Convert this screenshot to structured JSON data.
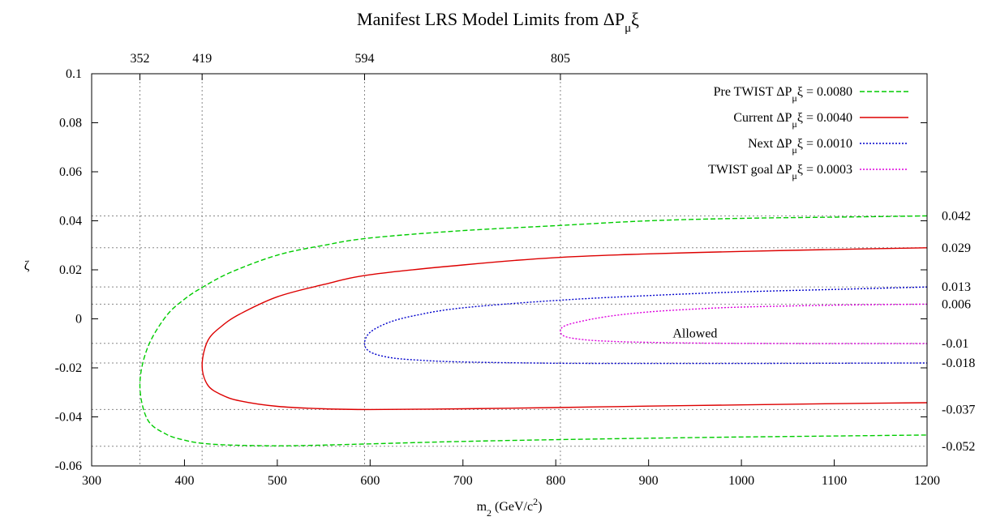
{
  "chart_data": {
    "type": "line",
    "title": "Manifest LRS Model Limits from ΔP",
    "title_sub": "μ",
    "title_tail": "ξ",
    "xlabel": "m",
    "xlabel_sub": "2",
    "xlabel_tail": " (GeV/c",
    "xlabel_sup": "2",
    "xlabel_end": ")",
    "ylabel": "ζ",
    "xlim": [
      300,
      1200
    ],
    "ylim": [
      -0.06,
      0.1
    ],
    "x_ticks": [
      "300",
      "400",
      "500",
      "600",
      "700",
      "800",
      "900",
      "1000",
      "1100",
      "1200"
    ],
    "y_ticks": [
      "-0.06",
      "-0.04",
      "-0.02",
      "0",
      "0.02",
      "0.04",
      "0.06",
      "0.08",
      "0.1"
    ],
    "x_tick_values": [
      300,
      400,
      500,
      600,
      700,
      800,
      900,
      1000,
      1100,
      1200
    ],
    "y_tick_values": [
      -0.06,
      -0.04,
      -0.02,
      0,
      0.02,
      0.04,
      0.06,
      0.08,
      0.1
    ],
    "top_markers": [
      {
        "label": "352",
        "value": 352
      },
      {
        "label": "419",
        "value": 419
      },
      {
        "label": "594",
        "value": 594
      },
      {
        "label": "805",
        "value": 805
      }
    ],
    "right_markers": [
      {
        "label": "0.042",
        "value": 0.042
      },
      {
        "label": "0.029",
        "value": 0.029
      },
      {
        "label": "0.013",
        "value": 0.013
      },
      {
        "label": "0.006",
        "value": 0.006
      },
      {
        "label": "-0.01",
        "value": -0.01
      },
      {
        "label": "-0.018",
        "value": -0.018
      },
      {
        "label": "-0.037",
        "value": -0.037
      },
      {
        "label": "-0.052",
        "value": -0.052
      }
    ],
    "series": [
      {
        "name": "Pre TWIST ΔP",
        "name_sub": "μ",
        "name_tail": "ξ = 0.0080",
        "color": "#00cc00",
        "dash": "dashed",
        "vertex": [
          352,
          -0.027
        ],
        "x": [
          352,
          360,
          380,
          400,
          420,
          450,
          500,
          550,
          600,
          700,
          800,
          900,
          1000,
          1100,
          1200
        ],
        "upper": [
          -0.027,
          -0.012,
          0.001,
          0.008,
          0.013,
          0.019,
          0.026,
          0.03,
          0.033,
          0.036,
          0.038,
          0.04,
          0.041,
          0.0415,
          0.042
        ],
        "lower": [
          -0.027,
          -0.041,
          -0.047,
          -0.0495,
          -0.0508,
          -0.0515,
          -0.0518,
          -0.0515,
          -0.051,
          -0.05,
          -0.0493,
          -0.0487,
          -0.0482,
          -0.0478,
          -0.0474
        ]
      },
      {
        "name": "Current ΔP",
        "name_sub": "μ",
        "name_tail": "ξ = 0.0040",
        "color": "#dd0000",
        "dash": "solid",
        "vertex": [
          419,
          -0.019
        ],
        "x": [
          419,
          425,
          440,
          460,
          500,
          550,
          600,
          700,
          800,
          900,
          1000,
          1100,
          1200
        ],
        "upper": [
          -0.019,
          -0.009,
          -0.003,
          0.002,
          0.009,
          0.014,
          0.018,
          0.022,
          0.025,
          0.0265,
          0.0275,
          0.0283,
          0.029
        ],
        "lower": [
          -0.019,
          -0.027,
          -0.031,
          -0.0335,
          -0.0357,
          -0.0367,
          -0.037,
          -0.0367,
          -0.0362,
          -0.0356,
          -0.0351,
          -0.0346,
          -0.0342
        ]
      },
      {
        "name": "Next ΔP",
        "name_sub": "μ",
        "name_tail": "ξ = 0.0010",
        "color": "#0000cc",
        "dash": "dotted",
        "vertex": [
          594,
          -0.01
        ],
        "x": [
          594,
          600,
          620,
          650,
          700,
          800,
          900,
          1000,
          1100,
          1200
        ],
        "upper": [
          -0.01,
          -0.0055,
          -0.0015,
          0.0015,
          0.0045,
          0.0075,
          0.0095,
          0.011,
          0.012,
          0.013
        ],
        "lower": [
          -0.01,
          -0.0135,
          -0.0157,
          -0.0168,
          -0.0176,
          -0.0181,
          -0.0182,
          -0.0182,
          -0.0181,
          -0.018
        ]
      },
      {
        "name": "TWIST goal ΔP",
        "name_sub": "μ",
        "name_tail": "ξ = 0.0003",
        "color": "#dd00dd",
        "dash": "dotted",
        "vertex": [
          805,
          -0.005
        ],
        "x": [
          805,
          810,
          830,
          860,
          900,
          950,
          1000,
          1100,
          1200
        ],
        "upper": [
          -0.005,
          -0.0028,
          -0.0008,
          0.0012,
          0.0028,
          0.004,
          0.0048,
          0.0056,
          0.006
        ],
        "lower": [
          -0.005,
          -0.0072,
          -0.0085,
          -0.0092,
          -0.0096,
          -0.0099,
          -0.01,
          -0.0101,
          -0.0101
        ]
      }
    ],
    "annotations": [
      {
        "text": "Allowed",
        "x": 950,
        "y": -0.006
      }
    ],
    "grid": "dotted reference lines at marker values",
    "legend_position": "top-right"
  }
}
